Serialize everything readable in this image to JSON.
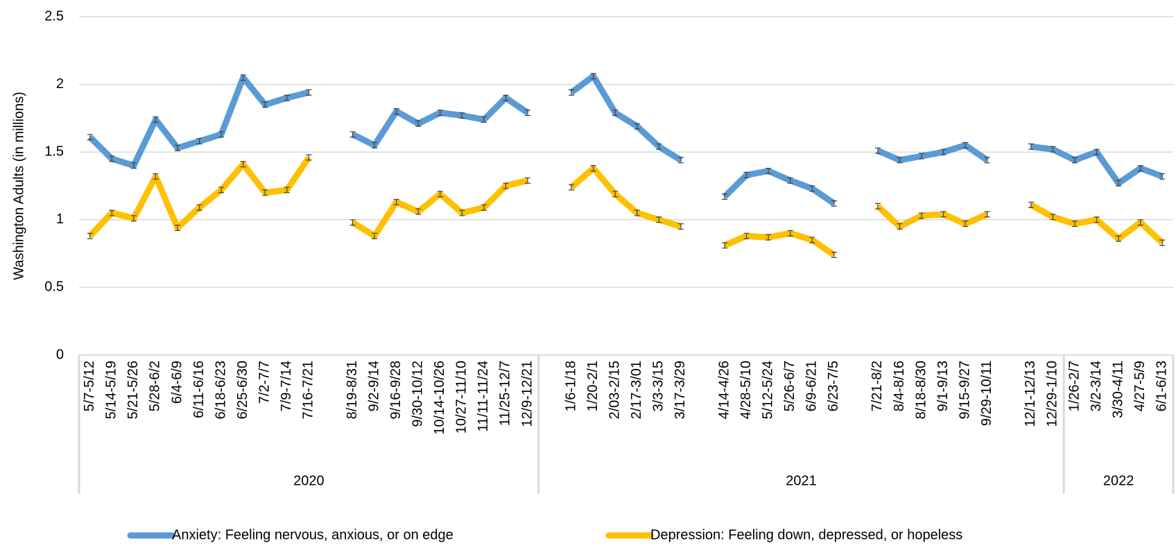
{
  "chart_data": {
    "type": "line",
    "y_label": "Washington Adults (in millions)",
    "categories": [
      "5/7-5/12",
      "5/14-5/19",
      "5/21-5/26",
      "5/28-6/2",
      "6/4-6/9",
      "6/11-6/16",
      "6/18-6/23",
      "6/25-6/30",
      "7/2-7/7",
      "7/9-7/14",
      "7/16-7/21",
      null,
      "8/19-8/31",
      "9/2-9/14",
      "9/16-9/28",
      "9/30-10/12",
      "10/14-10/26",
      "10/27-11/10",
      "11/11-11/24",
      "11/25-12/7",
      "12/9-12/21",
      null,
      "1/6-1/18",
      "1/20-2/1",
      "2/03-2/15",
      "2/17-3/01",
      "3/3-3/15",
      "3/17-3/29",
      null,
      "4/14-4/26",
      "4/28-5/10",
      "5/12-5/24",
      "5/26-6/7",
      "6/9-6/21",
      "6/23-7/5",
      null,
      "7/21-8/2",
      "8/4-8/16",
      "8/18-8/30",
      "9/1-9/13",
      "9/15-9/27",
      "9/29-10/11",
      null,
      "12/1-12/13",
      "12/29-1/10",
      "1/26-2/7",
      "3/2-3/14",
      "3/30-4/11",
      "4/27-5/9",
      "6/1-6/13"
    ],
    "category_groups": [
      {
        "label": "2020",
        "categories": 21
      },
      {
        "label": "2021",
        "categories": 24
      },
      {
        "label": "2022",
        "categories": 5
      }
    ],
    "series": [
      {
        "name": "Anxiety: Feeling nervous, anxious, or on edge",
        "color": "#5b9bd5",
        "error": 0.02,
        "values": [
          1.61,
          1.45,
          1.4,
          1.74,
          1.53,
          1.58,
          1.63,
          2.05,
          1.85,
          1.9,
          1.94,
          null,
          1.63,
          1.55,
          1.8,
          1.71,
          1.79,
          1.77,
          1.74,
          1.9,
          1.79,
          null,
          1.94,
          2.06,
          1.79,
          1.69,
          1.54,
          1.44,
          null,
          1.17,
          1.33,
          1.36,
          1.29,
          1.23,
          1.12,
          null,
          1.51,
          1.44,
          1.47,
          1.5,
          1.55,
          1.44,
          null,
          1.54,
          1.52,
          1.44,
          1.5,
          1.27,
          1.38,
          1.32
        ]
      },
      {
        "name": "Depression: Feeling down, depressed, or hopeless",
        "color": "#ffc000",
        "error": 0.02,
        "values": [
          0.88,
          1.05,
          1.01,
          1.32,
          0.94,
          1.09,
          1.22,
          1.41,
          1.2,
          1.22,
          1.46,
          null,
          0.98,
          0.88,
          1.13,
          1.06,
          1.19,
          1.05,
          1.09,
          1.25,
          1.29,
          null,
          1.24,
          1.38,
          1.19,
          1.05,
          1.0,
          0.95,
          null,
          0.81,
          0.88,
          0.87,
          0.9,
          0.85,
          0.74,
          null,
          1.1,
          0.95,
          1.03,
          1.04,
          0.97,
          1.04,
          null,
          1.11,
          1.02,
          0.97,
          1.0,
          0.86,
          0.98,
          0.83
        ]
      }
    ],
    "ylim": [
      0,
      2.5
    ],
    "yticks": [
      0,
      0.5,
      1,
      1.5,
      2,
      2.5
    ],
    "grid": true,
    "legend": "bottom"
  }
}
